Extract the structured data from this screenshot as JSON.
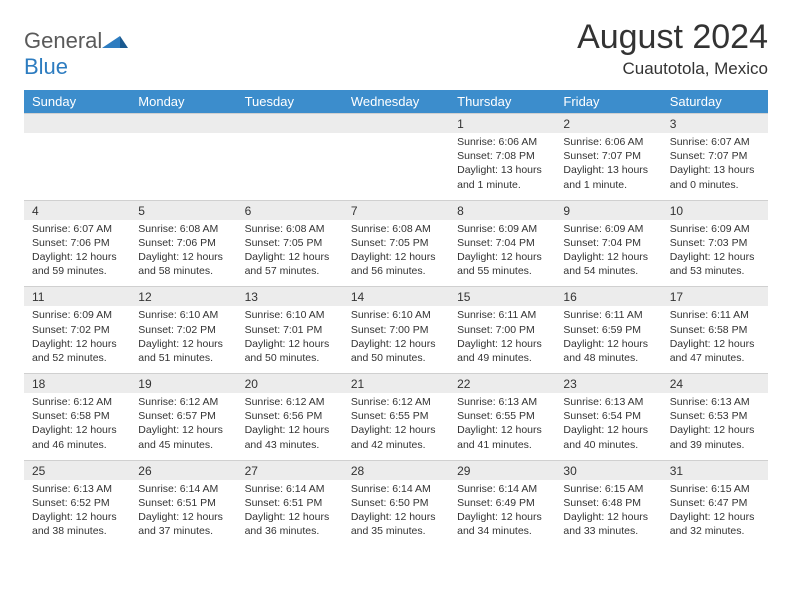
{
  "brand": {
    "name_a": "General",
    "name_b": "Blue"
  },
  "title": "August 2024",
  "location": "Cuautotola, Mexico",
  "colors": {
    "header_bg": "#3c8dcc",
    "header_fg": "#ffffff",
    "daynum_bg": "#ececec",
    "text": "#333333",
    "brand_blue": "#2d7cc0",
    "brand_gray": "#5a5a5a",
    "page_bg": "#ffffff"
  },
  "fonts": {
    "title_size": 34,
    "location_size": 17,
    "dayhead_size": 13,
    "daynum_size": 12,
    "cell_size": 10.5
  },
  "day_headers": [
    "Sunday",
    "Monday",
    "Tuesday",
    "Wednesday",
    "Thursday",
    "Friday",
    "Saturday"
  ],
  "weeks": [
    {
      "nums": [
        "",
        "",
        "",
        "",
        "1",
        "2",
        "3"
      ],
      "cells": [
        null,
        null,
        null,
        null,
        {
          "sunrise": "Sunrise: 6:06 AM",
          "sunset": "Sunset: 7:08 PM",
          "daylight": "Daylight: 13 hours and 1 minute."
        },
        {
          "sunrise": "Sunrise: 6:06 AM",
          "sunset": "Sunset: 7:07 PM",
          "daylight": "Daylight: 13 hours and 1 minute."
        },
        {
          "sunrise": "Sunrise: 6:07 AM",
          "sunset": "Sunset: 7:07 PM",
          "daylight": "Daylight: 13 hours and 0 minutes."
        }
      ]
    },
    {
      "nums": [
        "4",
        "5",
        "6",
        "7",
        "8",
        "9",
        "10"
      ],
      "cells": [
        {
          "sunrise": "Sunrise: 6:07 AM",
          "sunset": "Sunset: 7:06 PM",
          "daylight": "Daylight: 12 hours and 59 minutes."
        },
        {
          "sunrise": "Sunrise: 6:08 AM",
          "sunset": "Sunset: 7:06 PM",
          "daylight": "Daylight: 12 hours and 58 minutes."
        },
        {
          "sunrise": "Sunrise: 6:08 AM",
          "sunset": "Sunset: 7:05 PM",
          "daylight": "Daylight: 12 hours and 57 minutes."
        },
        {
          "sunrise": "Sunrise: 6:08 AM",
          "sunset": "Sunset: 7:05 PM",
          "daylight": "Daylight: 12 hours and 56 minutes."
        },
        {
          "sunrise": "Sunrise: 6:09 AM",
          "sunset": "Sunset: 7:04 PM",
          "daylight": "Daylight: 12 hours and 55 minutes."
        },
        {
          "sunrise": "Sunrise: 6:09 AM",
          "sunset": "Sunset: 7:04 PM",
          "daylight": "Daylight: 12 hours and 54 minutes."
        },
        {
          "sunrise": "Sunrise: 6:09 AM",
          "sunset": "Sunset: 7:03 PM",
          "daylight": "Daylight: 12 hours and 53 minutes."
        }
      ]
    },
    {
      "nums": [
        "11",
        "12",
        "13",
        "14",
        "15",
        "16",
        "17"
      ],
      "cells": [
        {
          "sunrise": "Sunrise: 6:09 AM",
          "sunset": "Sunset: 7:02 PM",
          "daylight": "Daylight: 12 hours and 52 minutes."
        },
        {
          "sunrise": "Sunrise: 6:10 AM",
          "sunset": "Sunset: 7:02 PM",
          "daylight": "Daylight: 12 hours and 51 minutes."
        },
        {
          "sunrise": "Sunrise: 6:10 AM",
          "sunset": "Sunset: 7:01 PM",
          "daylight": "Daylight: 12 hours and 50 minutes."
        },
        {
          "sunrise": "Sunrise: 6:10 AM",
          "sunset": "Sunset: 7:00 PM",
          "daylight": "Daylight: 12 hours and 50 minutes."
        },
        {
          "sunrise": "Sunrise: 6:11 AM",
          "sunset": "Sunset: 7:00 PM",
          "daylight": "Daylight: 12 hours and 49 minutes."
        },
        {
          "sunrise": "Sunrise: 6:11 AM",
          "sunset": "Sunset: 6:59 PM",
          "daylight": "Daylight: 12 hours and 48 minutes."
        },
        {
          "sunrise": "Sunrise: 6:11 AM",
          "sunset": "Sunset: 6:58 PM",
          "daylight": "Daylight: 12 hours and 47 minutes."
        }
      ]
    },
    {
      "nums": [
        "18",
        "19",
        "20",
        "21",
        "22",
        "23",
        "24"
      ],
      "cells": [
        {
          "sunrise": "Sunrise: 6:12 AM",
          "sunset": "Sunset: 6:58 PM",
          "daylight": "Daylight: 12 hours and 46 minutes."
        },
        {
          "sunrise": "Sunrise: 6:12 AM",
          "sunset": "Sunset: 6:57 PM",
          "daylight": "Daylight: 12 hours and 45 minutes."
        },
        {
          "sunrise": "Sunrise: 6:12 AM",
          "sunset": "Sunset: 6:56 PM",
          "daylight": "Daylight: 12 hours and 43 minutes."
        },
        {
          "sunrise": "Sunrise: 6:12 AM",
          "sunset": "Sunset: 6:55 PM",
          "daylight": "Daylight: 12 hours and 42 minutes."
        },
        {
          "sunrise": "Sunrise: 6:13 AM",
          "sunset": "Sunset: 6:55 PM",
          "daylight": "Daylight: 12 hours and 41 minutes."
        },
        {
          "sunrise": "Sunrise: 6:13 AM",
          "sunset": "Sunset: 6:54 PM",
          "daylight": "Daylight: 12 hours and 40 minutes."
        },
        {
          "sunrise": "Sunrise: 6:13 AM",
          "sunset": "Sunset: 6:53 PM",
          "daylight": "Daylight: 12 hours and 39 minutes."
        }
      ]
    },
    {
      "nums": [
        "25",
        "26",
        "27",
        "28",
        "29",
        "30",
        "31"
      ],
      "cells": [
        {
          "sunrise": "Sunrise: 6:13 AM",
          "sunset": "Sunset: 6:52 PM",
          "daylight": "Daylight: 12 hours and 38 minutes."
        },
        {
          "sunrise": "Sunrise: 6:14 AM",
          "sunset": "Sunset: 6:51 PM",
          "daylight": "Daylight: 12 hours and 37 minutes."
        },
        {
          "sunrise": "Sunrise: 6:14 AM",
          "sunset": "Sunset: 6:51 PM",
          "daylight": "Daylight: 12 hours and 36 minutes."
        },
        {
          "sunrise": "Sunrise: 6:14 AM",
          "sunset": "Sunset: 6:50 PM",
          "daylight": "Daylight: 12 hours and 35 minutes."
        },
        {
          "sunrise": "Sunrise: 6:14 AM",
          "sunset": "Sunset: 6:49 PM",
          "daylight": "Daylight: 12 hours and 34 minutes."
        },
        {
          "sunrise": "Sunrise: 6:15 AM",
          "sunset": "Sunset: 6:48 PM",
          "daylight": "Daylight: 12 hours and 33 minutes."
        },
        {
          "sunrise": "Sunrise: 6:15 AM",
          "sunset": "Sunset: 6:47 PM",
          "daylight": "Daylight: 12 hours and 32 minutes."
        }
      ]
    }
  ]
}
